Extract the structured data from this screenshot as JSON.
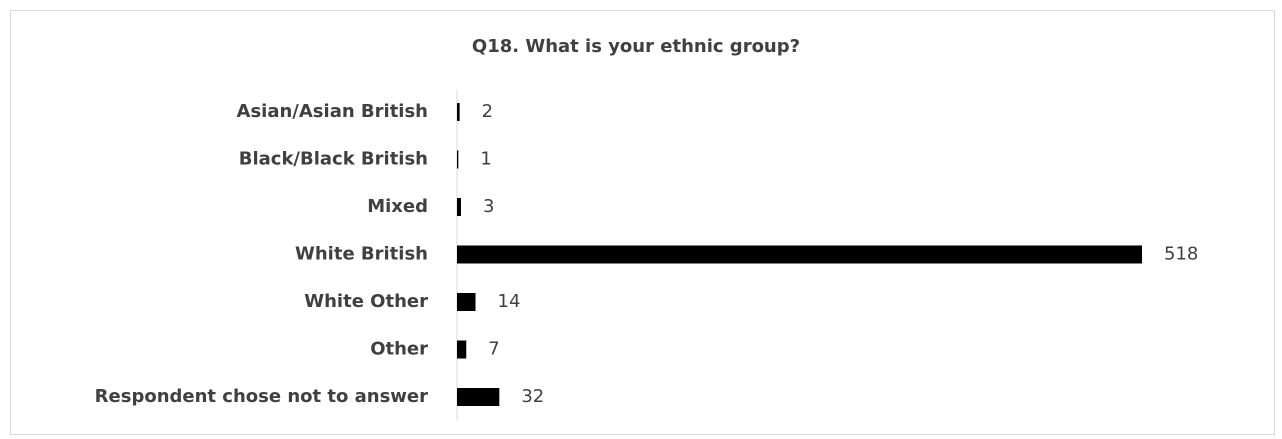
{
  "chart_data": {
    "type": "bar",
    "orientation": "horizontal",
    "title": "Q18. What is your ethnic group?",
    "categories": [
      "Asian/Asian British",
      "Black/Black British",
      "Mixed",
      "White British",
      "White Other",
      "Other",
      "Respondent chose not to answer"
    ],
    "values": [
      2,
      1,
      3,
      518,
      14,
      7,
      32
    ],
    "color": "#000000"
  }
}
